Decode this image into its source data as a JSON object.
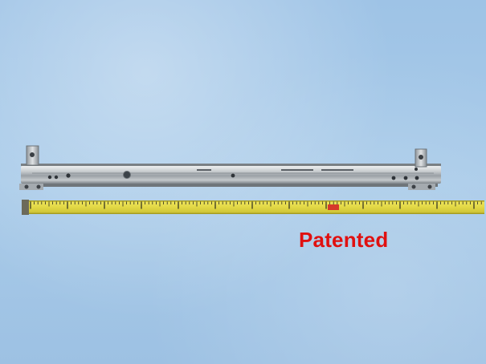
{
  "image": {
    "caption": "Patented",
    "colors": {
      "background": "#a5c8e8",
      "rail_metal": "#c8ccce",
      "tape_yellow": "#e3d94a",
      "caption_red": "#e01010"
    },
    "objects": [
      "drawer-slide-rail",
      "measuring-tape"
    ]
  }
}
